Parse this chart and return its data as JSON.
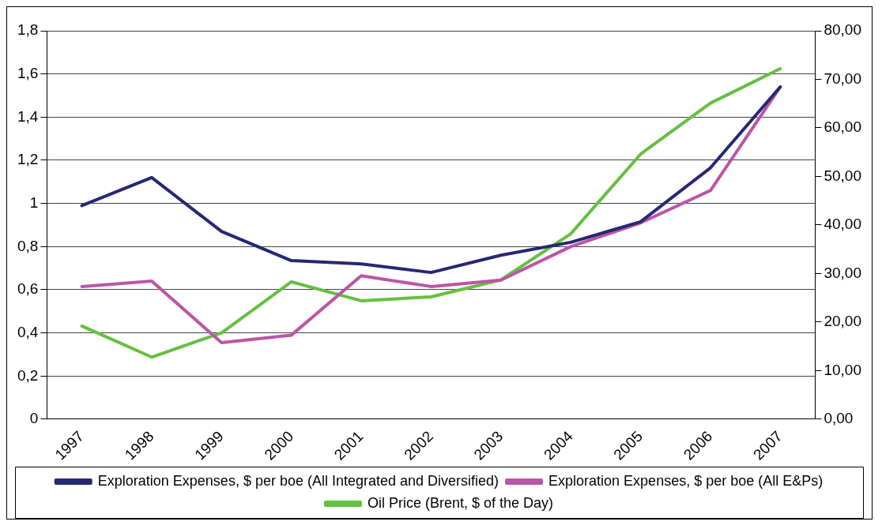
{
  "chart_data": {
    "type": "line",
    "categories": [
      "1997",
      "1998",
      "1999",
      "2000",
      "2001",
      "2002",
      "2003",
      "2004",
      "2005",
      "2006",
      "2007"
    ],
    "series": [
      {
        "name": "Exploration Expenses, $ per boe (All Integrated and Diversified)",
        "color": "#252873",
        "values": [
          0.99,
          1.12,
          0.87,
          0.735,
          0.72,
          0.68,
          0.76,
          0.82,
          0.915,
          1.165,
          1.54
        ]
      },
      {
        "name": "Exploration Expenses, $ per boe (All E&Ps)",
        "color": "#bb55a6",
        "values": [
          0.615,
          0.64,
          0.355,
          0.39,
          0.665,
          0.615,
          0.645,
          0.8,
          0.91,
          1.06,
          1.54
        ]
      },
      {
        "name": "Oil Price (Brent, $ of the Day)",
        "color": "#66bf40",
        "axis": "y2",
        "values": [
          19.2,
          12.8,
          17.8,
          28.3,
          24.4,
          25.2,
          28.7,
          38.2,
          54.6,
          65.1,
          72.2
        ]
      }
    ],
    "ylim": [
      0,
      1.8
    ],
    "yticks": [
      0,
      {
        "value": 0.2,
        "label": "0,2"
      },
      {
        "value": 0.4,
        "label": "0,4"
      },
      {
        "value": 0.6,
        "label": "0,6"
      },
      {
        "value": 0.8,
        "label": "0,8"
      },
      1,
      {
        "value": 1.2,
        "label": "1,2"
      },
      {
        "value": 1.4,
        "label": "1,4"
      },
      {
        "value": 1.6,
        "label": "1,6"
      },
      {
        "value": 1.8,
        "label": "1,8"
      }
    ],
    "y2lim": [
      0,
      80
    ],
    "y2ticks": [
      {
        "value": 0,
        "label": "0,00"
      },
      {
        "value": 10,
        "label": "10,00"
      },
      {
        "value": 20,
        "label": "20,00"
      },
      {
        "value": 30,
        "label": "30,00"
      },
      {
        "value": 40,
        "label": "40,00"
      },
      {
        "value": 50,
        "label": "50,00"
      },
      {
        "value": 60,
        "label": "60,00"
      },
      {
        "value": 70,
        "label": "70,00"
      },
      {
        "value": 80,
        "label": "80,00"
      }
    ],
    "grid": "y",
    "legend": "bottom",
    "marker": "none",
    "line_style": "solid"
  }
}
